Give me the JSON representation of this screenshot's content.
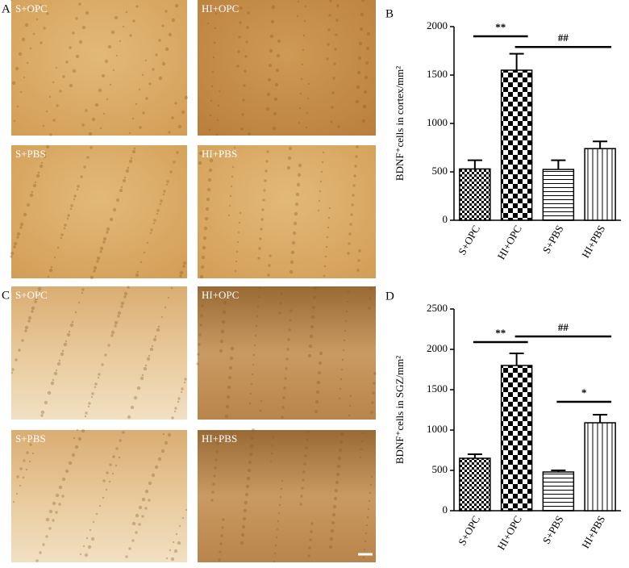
{
  "panels": [
    "A",
    "B",
    "C",
    "D"
  ],
  "images": [
    {
      "label": "S+OPC"
    },
    {
      "label": "HI+OPC"
    },
    {
      "label": "S+PBS"
    },
    {
      "label": "HI+PBS"
    },
    {
      "label": "S+OPC"
    },
    {
      "label": "HI+OPC"
    },
    {
      "label": "S+PBS"
    },
    {
      "label": "HI+PBS"
    }
  ],
  "chart_data": [
    {
      "type": "bar",
      "y_label": "BDNF⁺cells in cortex/mm²",
      "categories": [
        "S+OPC",
        "HI+OPC",
        "S+PBS",
        "HI+PBS"
      ],
      "values": [
        530,
        1550,
        525,
        740
      ],
      "errors": [
        90,
        170,
        95,
        75
      ],
      "ylim": [
        0,
        2000
      ],
      "yticks": [
        0,
        500,
        1000,
        1500,
        2000
      ],
      "annotations": [
        "**",
        "##"
      ],
      "color": "#000000"
    },
    {
      "type": "bar",
      "y_label": "BDNF⁺cells in SGZ/mm²",
      "categories": [
        "S+OPC",
        "HI+OPC",
        "S+PBS",
        "HI+PBS"
      ],
      "values": [
        650,
        1800,
        480,
        1090
      ],
      "errors": [
        50,
        150,
        20,
        100
      ],
      "ylim": [
        0,
        2500
      ],
      "yticks": [
        0,
        500,
        1000,
        1500,
        2000,
        2500
      ],
      "annotations": [
        "**",
        "##",
        "*"
      ],
      "color": "#000000"
    }
  ]
}
